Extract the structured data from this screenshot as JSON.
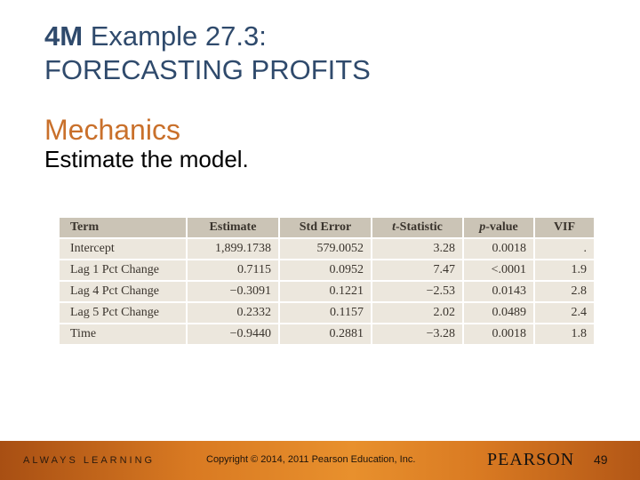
{
  "slide": {
    "title_bold": "4M",
    "title_rest": " Example 27.3:",
    "title_line2": "FORECASTING PROFITS",
    "subtitle": "Mechanics",
    "body": "Estimate the model."
  },
  "table": {
    "headers": [
      {
        "pre": "",
        "italic": "",
        "post": "Term"
      },
      {
        "pre": "",
        "italic": "",
        "post": "Estimate"
      },
      {
        "pre": "",
        "italic": "",
        "post": "Std Error"
      },
      {
        "pre": "",
        "italic": "t",
        "post": "-Statistic"
      },
      {
        "pre": "",
        "italic": "p",
        "post": "-value"
      },
      {
        "pre": "",
        "italic": "",
        "post": "VIF"
      }
    ],
    "rows": [
      [
        "Intercept",
        "1,899.1738",
        "579.0052",
        "3.28",
        "0.0018",
        "."
      ],
      [
        "Lag 1 Pct Change",
        "0.7115",
        "0.0952",
        "7.47",
        "<.0001",
        "1.9"
      ],
      [
        "Lag 4 Pct Change",
        "−0.3091",
        "0.1221",
        "−2.53",
        "0.0143",
        "2.8"
      ],
      [
        "Lag 5 Pct Change",
        "0.2332",
        "0.1157",
        "2.02",
        "0.0489",
        "2.4"
      ],
      [
        "Time",
        "−0.9440",
        "0.2881",
        "−3.28",
        "0.0018",
        "1.8"
      ]
    ]
  },
  "footer": {
    "tagline": "ALWAYS LEARNING",
    "copyright": "Copyright © 2014, 2011 Pearson Education, Inc.",
    "logo": "PEARSON",
    "page_number": "49"
  }
}
